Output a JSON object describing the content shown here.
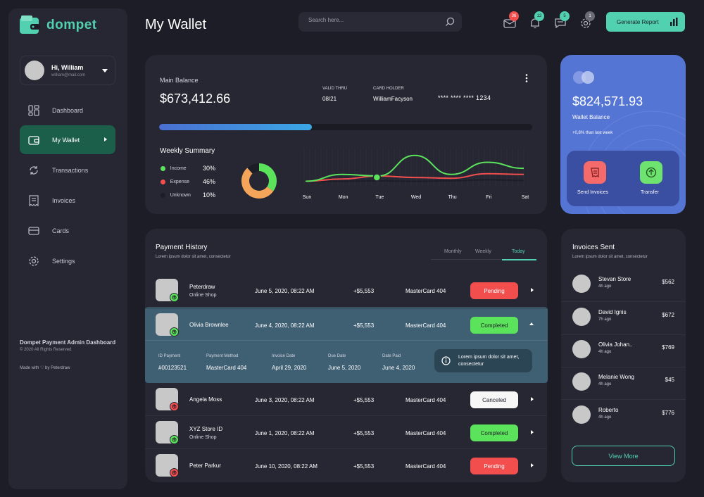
{
  "app": {
    "logo_text": "dompet"
  },
  "user": {
    "name": "Hi, William",
    "email": "william@mail.com"
  },
  "sidebar": {
    "items": [
      {
        "label": "Dashboard",
        "icon": "dashboard-icon"
      },
      {
        "label": "My Wallet",
        "icon": "wallet-icon",
        "active": true
      },
      {
        "label": "Transactions",
        "icon": "transactions-icon"
      },
      {
        "label": "Invoices",
        "icon": "invoice-icon"
      },
      {
        "label": "Cards",
        "icon": "card-icon"
      },
      {
        "label": "Settings",
        "icon": "gear-icon"
      }
    ],
    "footer_title": "Dompet Payment Admin Dashboard",
    "footer_copyright": "© 2020 All Rights Reserved",
    "footer_made": "Made with ♡ by Peterdraw"
  },
  "header": {
    "title": "My Wallet",
    "search_placeholder": "Search here...",
    "badges": {
      "mail": "36",
      "bell": "12",
      "chat": "5",
      "settings": "1"
    },
    "generate_report": "Generate Report"
  },
  "main_card": {
    "main_balance_label": "Main Balance",
    "main_balance": "$673,412.66",
    "valid_thru_label": "VALID THRU",
    "valid_thru": "08/21",
    "card_holder_label": "CARD HOLDER",
    "card_holder": "WilliamFacyson",
    "card_number": "**** **** **** 1234",
    "progress": 0.41,
    "weekly_summary_title": "Weekly Summary",
    "legend": [
      {
        "name": "Income",
        "percent": "30%",
        "color": "#5ce35c"
      },
      {
        "name": "Expense",
        "percent": "46%",
        "color": "#f24e4e"
      },
      {
        "name": "Unknown",
        "percent": "10%",
        "color": "#1d1d27"
      }
    ]
  },
  "chart_data": {
    "type": "line",
    "categories": [
      "Sun",
      "Mon",
      "Tue",
      "Wed",
      "Thu",
      "Fri",
      "Sat"
    ],
    "series": [
      {
        "color": "#5ce35c",
        "values": [
          12,
          30,
          26,
          80,
          30,
          62,
          46
        ]
      },
      {
        "color": "#f24e4e",
        "values": [
          12,
          18,
          26,
          22,
          20,
          32,
          30
        ]
      },
      {
        "color": "#1d1d27",
        "values": [
          10,
          12,
          13,
          12,
          13,
          16,
          14
        ]
      }
    ],
    "ylim": [
      0,
      100
    ],
    "highlight": {
      "category": "Tue"
    }
  },
  "wallet_card": {
    "balance": "$824,571.93",
    "label": "Wallet Balance",
    "change": "+0,8% than last week",
    "send_invoices": "Send Invoices",
    "transfer": "Transfer"
  },
  "payment_history": {
    "title": "Payment History",
    "subtitle": "Lorem ipsum dolor sit amet, consectetur",
    "tabs": [
      "Monthly",
      "Weekly",
      "Today"
    ],
    "active_tab": "Today",
    "rows": [
      {
        "name": "Peterdraw",
        "sub": "Online Shop",
        "date": "June 5, 2020, 08:22 AM",
        "amount": "+$5,553",
        "card": "MasterCard 404",
        "status": "Pending",
        "indicator": "green"
      },
      {
        "name": "Olivia Brownlee",
        "sub": "",
        "date": "June 4, 2020, 08:22 AM",
        "amount": "+$5,553",
        "card": "MasterCard 404",
        "status": "Completed",
        "indicator": "green"
      },
      {
        "name": "Angela Moss",
        "sub": "",
        "date": "June 3, 2020, 08:22 AM",
        "amount": "+$5,553",
        "card": "MasterCard 404",
        "status": "Canceled",
        "indicator": "red"
      },
      {
        "name": "XYZ Store ID",
        "sub": "Online Shop",
        "date": "June 1, 2020, 08:22 AM",
        "amount": "+$5,553",
        "card": "MasterCard 404",
        "status": "Completed",
        "indicator": "green"
      },
      {
        "name": "Peter Parkur",
        "sub": "",
        "date": "June 10, 2020, 08:22 AM",
        "amount": "+$5,553",
        "card": "MasterCard 404",
        "status": "Pending",
        "indicator": "red"
      }
    ],
    "details": {
      "id_label": "ID Payment",
      "id": "#00123521",
      "method_label": "Payment Method",
      "method": "MasterCard 404",
      "invoice_label": "Invoice Date",
      "invoice": "April 29, 2020",
      "due_label": "Due Date",
      "due": "June 5, 2020",
      "paid_label": "Date Paid",
      "paid": "June 4, 2020",
      "note": "Lorem ipsum dolor sit amet, consectetur"
    }
  },
  "invoices_sent": {
    "title": "Invoices Sent",
    "subtitle": "Lorem ipsum dolor sit amet, consectetur",
    "items": [
      {
        "name": "Stevan Store",
        "time": "4h ago",
        "amount": "$562"
      },
      {
        "name": "David Ignis",
        "time": "7h ago",
        "amount": "$672"
      },
      {
        "name": "Olivia Johan..",
        "time": "4h ago",
        "amount": "$769"
      },
      {
        "name": "Melanie Wong",
        "time": "4h ago",
        "amount": "$45"
      },
      {
        "name": "Roberto",
        "time": "4h ago",
        "amount": "$776"
      }
    ],
    "view_more": "View More"
  }
}
